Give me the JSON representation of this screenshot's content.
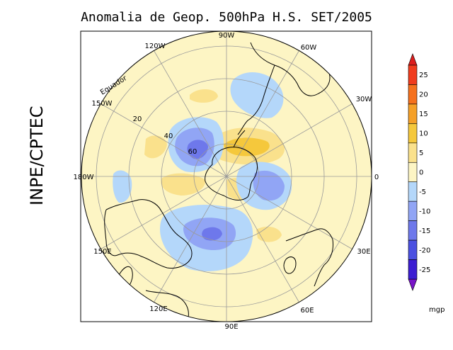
{
  "title": "Anomalia de Geop. 500hPa H.S. SET/2005",
  "credit": "INPE/CPTEC",
  "colorbar": {
    "unit": "mgp",
    "levels": [
      {
        "label": "25",
        "color": "#f03c1e"
      },
      {
        "label": "20",
        "color": "#f5711e"
      },
      {
        "label": "15",
        "color": "#f5a028"
      },
      {
        "label": "10",
        "color": "#f5c83c"
      },
      {
        "label": "5",
        "color": "#fae18c"
      },
      {
        "label": "0",
        "color": "#fdf5c4"
      },
      {
        "label": "-5",
        "color": "#b4d7fa"
      },
      {
        "label": "-10",
        "color": "#91a5f5"
      },
      {
        "label": "-15",
        "color": "#6e78eb"
      },
      {
        "label": "-20",
        "color": "#4b50e1"
      },
      {
        "label": "-25",
        "color": "#3c1ed2"
      }
    ],
    "top_arrow_color": "#dc1e1e",
    "bottom_arrow_color": "#7814c8"
  },
  "map": {
    "background_color": "#fdf5c4",
    "longitude_labels": [
      "90W",
      "60W",
      "30W",
      "0",
      "30E",
      "60E",
      "90E",
      "120E",
      "150E",
      "180W",
      "150W",
      "120W"
    ],
    "latitude_labels": [
      "20",
      "40",
      "60"
    ],
    "equator_label": "Equador"
  }
}
